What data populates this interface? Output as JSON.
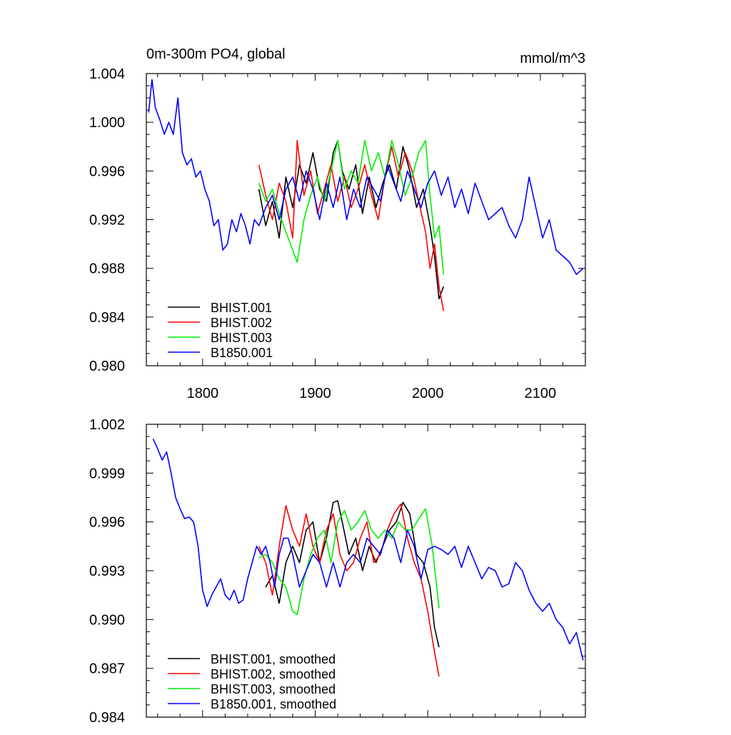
{
  "chart_data": [
    {
      "type": "line",
      "title": "0m-300m PO4, global",
      "units": "mmol/m^3",
      "xlabel": "",
      "ylabel": "",
      "xlim": [
        1750,
        2140
      ],
      "ylim": [
        0.98,
        1.004
      ],
      "x_ticks": [
        1800,
        1900,
        2000,
        2100
      ],
      "x_tick_labels": [
        "1800",
        "1900",
        "2000",
        "2100"
      ],
      "y_ticks": [
        0.98,
        0.984,
        0.988,
        0.992,
        0.996,
        1.0,
        1.004
      ],
      "y_tick_labels": [
        "0.980",
        "0.984",
        "0.988",
        "0.992",
        "0.996",
        "1.000",
        "1.004"
      ],
      "legend_position": "bottom-left",
      "legend": [
        "BHIST.001",
        "BHIST.002",
        "BHIST.003",
        "B1850.001"
      ],
      "series": [
        {
          "name": "BHIST.001",
          "color": "#000000",
          "x": [
            1850,
            1856,
            1862,
            1868,
            1874,
            1880,
            1886,
            1892,
            1898,
            1904,
            1910,
            1916,
            1920,
            1924,
            1930,
            1936,
            1942,
            1948,
            1954,
            1960,
            1966,
            1972,
            1978,
            1984,
            1990,
            1996,
            2002,
            2006,
            2010,
            2014
          ],
          "y": [
            0.9945,
            0.9915,
            0.9935,
            0.9905,
            0.9955,
            0.993,
            0.9965,
            0.995,
            0.9975,
            0.9945,
            0.9935,
            0.9975,
            0.9985,
            0.996,
            0.9945,
            0.9965,
            0.9925,
            0.9955,
            0.993,
            0.995,
            0.9965,
            0.9945,
            0.998,
            0.996,
            0.993,
            0.9945,
            0.9915,
            0.989,
            0.9855,
            0.9865
          ]
        },
        {
          "name": "BHIST.002",
          "color": "#ff0000",
          "x": [
            1850,
            1856,
            1862,
            1868,
            1874,
            1880,
            1884,
            1890,
            1896,
            1902,
            1908,
            1914,
            1920,
            1926,
            1932,
            1938,
            1944,
            1950,
            1956,
            1962,
            1968,
            1974,
            1980,
            1986,
            1992,
            1998,
            2002,
            2006,
            2010,
            2014
          ],
          "y": [
            0.9965,
            0.994,
            0.992,
            0.995,
            0.9935,
            0.9905,
            0.9985,
            0.994,
            0.996,
            0.9925,
            0.9945,
            0.9965,
            0.9935,
            0.9955,
            0.993,
            0.9945,
            0.9965,
            0.994,
            0.992,
            0.9955,
            0.998,
            0.9955,
            0.9975,
            0.996,
            0.9935,
            0.991,
            0.988,
            0.99,
            0.9865,
            0.9845
          ]
        },
        {
          "name": "BHIST.003",
          "color": "#00ee00",
          "x": [
            1850,
            1856,
            1862,
            1868,
            1874,
            1880,
            1884,
            1890,
            1896,
            1902,
            1908,
            1914,
            1920,
            1926,
            1932,
            1938,
            1944,
            1950,
            1956,
            1962,
            1968,
            1974,
            1980,
            1986,
            1992,
            1998,
            2002,
            2006,
            2010,
            2014
          ],
          "y": [
            0.995,
            0.9935,
            0.9945,
            0.9925,
            0.991,
            0.9895,
            0.9885,
            0.992,
            0.994,
            0.9955,
            0.9935,
            0.996,
            0.9985,
            0.9945,
            0.996,
            0.995,
            0.9985,
            0.996,
            0.9975,
            0.9955,
            0.9985,
            0.9965,
            0.994,
            0.9955,
            0.9975,
            0.9985,
            0.994,
            0.9905,
            0.9915,
            0.9875
          ]
        },
        {
          "name": "B1850.001",
          "color": "#0000ff",
          "x": [
            1752,
            1755,
            1758,
            1762,
            1766,
            1770,
            1774,
            1778,
            1782,
            1786,
            1790,
            1794,
            1798,
            1802,
            1806,
            1810,
            1814,
            1818,
            1822,
            1826,
            1830,
            1834,
            1838,
            1842,
            1846,
            1850,
            1856,
            1862,
            1868,
            1874,
            1880,
            1886,
            1892,
            1898,
            1904,
            1910,
            1916,
            1922,
            1928,
            1934,
            1940,
            1946,
            1952,
            1958,
            1964,
            1970,
            1976,
            1982,
            1988,
            1994,
            2000,
            2006,
            2012,
            2018,
            2024,
            2030,
            2036,
            2042,
            2048,
            2054,
            2060,
            2066,
            2072,
            2078,
            2084,
            2090,
            2096,
            2102,
            2108,
            2114,
            2120,
            2126,
            2132,
            2138
          ],
          "y": [
            1.0008,
            1.0035,
            1.0012,
            1.0002,
            0.999,
            1.0,
            0.999,
            1.002,
            0.9975,
            0.9965,
            0.997,
            0.9955,
            0.996,
            0.9945,
            0.9935,
            0.9915,
            0.992,
            0.9895,
            0.99,
            0.992,
            0.991,
            0.9925,
            0.9915,
            0.99,
            0.992,
            0.9915,
            0.993,
            0.994,
            0.992,
            0.9945,
            0.9955,
            0.9935,
            0.996,
            0.9945,
            0.992,
            0.995,
            0.993,
            0.9955,
            0.992,
            0.9945,
            0.993,
            0.9955,
            0.9945,
            0.9935,
            0.9965,
            0.995,
            0.9935,
            0.996,
            0.9945,
            0.993,
            0.995,
            0.996,
            0.994,
            0.9955,
            0.993,
            0.9945,
            0.9925,
            0.995,
            0.9935,
            0.992,
            0.9925,
            0.993,
            0.9915,
            0.9905,
            0.992,
            0.9955,
            0.993,
            0.9905,
            0.992,
            0.9895,
            0.989,
            0.9885,
            0.9875,
            0.988
          ]
        }
      ]
    },
    {
      "type": "line",
      "title": "",
      "xlabel": "",
      "ylabel": "",
      "xlim": [
        1750,
        2140
      ],
      "ylim": [
        0.984,
        1.002
      ],
      "x_ticks": [
        1800,
        1900,
        2000,
        2100
      ],
      "x_tick_labels": [],
      "y_ticks": [
        0.984,
        0.987,
        0.99,
        0.993,
        0.996,
        0.999,
        1.002
      ],
      "y_tick_labels": [
        "0.984",
        "0.987",
        "0.990",
        "0.993",
        "0.996",
        "0.999",
        "1.002"
      ],
      "legend_position": "bottom-left",
      "legend": [
        "BHIST.001, smoothed",
        "BHIST.002, smoothed",
        "BHIST.003, smoothed",
        "B1850.001, smoothed"
      ],
      "series": [
        {
          "name": "BHIST.001, smoothed",
          "color": "#000000",
          "x": [
            1856,
            1862,
            1868,
            1874,
            1880,
            1886,
            1892,
            1898,
            1904,
            1910,
            1916,
            1920,
            1924,
            1930,
            1936,
            1942,
            1948,
            1954,
            1960,
            1966,
            1972,
            1978,
            1984,
            1990,
            1996,
            2002,
            2006,
            2010
          ],
          "y": [
            0.992,
            0.9927,
            0.991,
            0.9935,
            0.9945,
            0.9935,
            0.9955,
            0.996,
            0.9935,
            0.995,
            0.9972,
            0.9973,
            0.996,
            0.994,
            0.995,
            0.993,
            0.9945,
            0.9935,
            0.9945,
            0.9955,
            0.996,
            0.9972,
            0.9965,
            0.994,
            0.9935,
            0.992,
            0.9895,
            0.9883
          ]
        },
        {
          "name": "BHIST.002, smoothed",
          "color": "#ff0000",
          "x": [
            1850,
            1856,
            1862,
            1868,
            1874,
            1880,
            1886,
            1892,
            1898,
            1904,
            1910,
            1916,
            1922,
            1928,
            1934,
            1940,
            1946,
            1952,
            1958,
            1964,
            1970,
            1976,
            1982,
            1988,
            1994,
            2000,
            2006,
            2010
          ],
          "y": [
            0.9945,
            0.9935,
            0.9915,
            0.9945,
            0.997,
            0.9955,
            0.9945,
            0.9965,
            0.9945,
            0.9935,
            0.9955,
            0.9965,
            0.994,
            0.993,
            0.9935,
            0.995,
            0.996,
            0.9935,
            0.994,
            0.9955,
            0.9965,
            0.9971,
            0.995,
            0.9935,
            0.9925,
            0.9905,
            0.988,
            0.9865
          ]
        },
        {
          "name": "BHIST.003, smoothed",
          "color": "#00ee00",
          "x": [
            1850,
            1856,
            1862,
            1868,
            1874,
            1880,
            1884,
            1890,
            1896,
            1902,
            1908,
            1914,
            1920,
            1926,
            1932,
            1938,
            1944,
            1950,
            1956,
            1962,
            1968,
            1974,
            1980,
            1986,
            1992,
            1998,
            2004,
            2010
          ],
          "y": [
            0.9938,
            0.994,
            0.9935,
            0.9925,
            0.992,
            0.9905,
            0.9903,
            0.9925,
            0.994,
            0.995,
            0.9955,
            0.9935,
            0.996,
            0.9967,
            0.9955,
            0.996,
            0.9967,
            0.9955,
            0.995,
            0.9955,
            0.995,
            0.996,
            0.9955,
            0.9955,
            0.9962,
            0.9968,
            0.9945,
            0.9907
          ]
        },
        {
          "name": "B1850.001, smoothed",
          "color": "#0000ff",
          "x": [
            1756,
            1760,
            1764,
            1768,
            1772,
            1776,
            1780,
            1784,
            1788,
            1792,
            1796,
            1800,
            1804,
            1808,
            1812,
            1816,
            1820,
            1824,
            1828,
            1832,
            1836,
            1840,
            1844,
            1848,
            1852,
            1856,
            1860,
            1864,
            1868,
            1872,
            1876,
            1880,
            1886,
            1892,
            1898,
            1904,
            1910,
            1916,
            1922,
            1928,
            1934,
            1940,
            1946,
            1952,
            1958,
            1964,
            1970,
            1976,
            1982,
            1988,
            1994,
            2000,
            2006,
            2012,
            2018,
            2024,
            2030,
            2036,
            2042,
            2048,
            2054,
            2060,
            2066,
            2072,
            2078,
            2084,
            2090,
            2096,
            2102,
            2108,
            2114,
            2120,
            2126,
            2132,
            2138
          ],
          "y": [
            1.0011,
            1.0005,
            0.9998,
            1.0003,
            0.999,
            0.9975,
            0.9968,
            0.9962,
            0.9963,
            0.996,
            0.9945,
            0.9918,
            0.9908,
            0.9915,
            0.992,
            0.9925,
            0.9915,
            0.9912,
            0.9918,
            0.991,
            0.9912,
            0.9925,
            0.9935,
            0.9945,
            0.994,
            0.9945,
            0.9935,
            0.992,
            0.994,
            0.995,
            0.995,
            0.994,
            0.992,
            0.993,
            0.994,
            0.9935,
            0.992,
            0.9935,
            0.992,
            0.9935,
            0.994,
            0.9935,
            0.995,
            0.9945,
            0.994,
            0.9955,
            0.995,
            0.9935,
            0.9955,
            0.9945,
            0.9925,
            0.9943,
            0.9945,
            0.9943,
            0.994,
            0.9945,
            0.9932,
            0.9945,
            0.9935,
            0.9925,
            0.9932,
            0.993,
            0.992,
            0.9922,
            0.9935,
            0.993,
            0.9918,
            0.991,
            0.9905,
            0.991,
            0.99,
            0.9895,
            0.9885,
            0.9892,
            0.9875
          ]
        }
      ]
    }
  ]
}
